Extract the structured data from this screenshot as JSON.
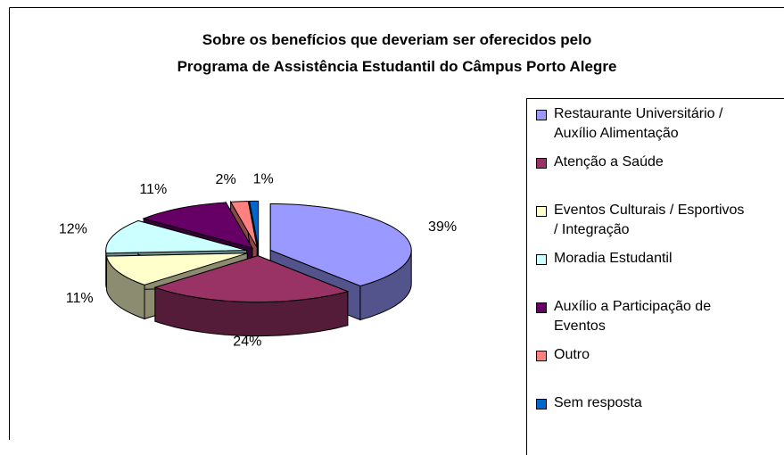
{
  "chart_data": {
    "type": "pie",
    "title": "Sobre os benefícios que deveriam ser oferecidos pelo",
    "subtitle": "Programa de Assistência Estudantil do Câmpus Porto Alegre",
    "categories": [
      "Restaurante Universitário / Auxílio Alimentação",
      "Atenção a Saúde",
      "Eventos Culturais / Esportivos / Integração",
      "Moradia Estudantil",
      "Auxílio a Participação de Eventos",
      "Outro",
      "Sem resposta"
    ],
    "values": [
      39,
      24,
      11,
      12,
      11,
      2,
      1
    ],
    "value_labels": [
      "39%",
      "24%",
      "11%",
      "12%",
      "11%",
      "2%",
      "1%"
    ],
    "colors": [
      "#9999ff",
      "#993366",
      "#ffffcc",
      "#ccffff",
      "#660066",
      "#ff8080",
      "#0066cc"
    ],
    "legend": "right"
  }
}
